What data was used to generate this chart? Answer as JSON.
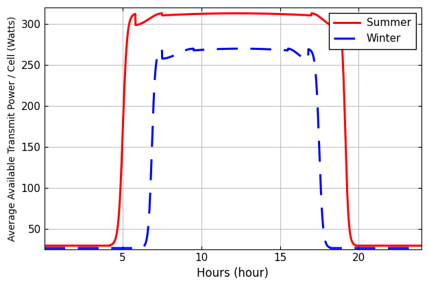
{
  "title": "",
  "xlabel": "Hours (hour)",
  "ylabel": "Average Available Transmit Power / Cell (Watts)",
  "xlim": [
    0,
    24
  ],
  "ylim": [
    25,
    320
  ],
  "yticks": [
    50,
    100,
    150,
    200,
    250,
    300
  ],
  "xticks": [
    5,
    10,
    15,
    20
  ],
  "summer_color": "#ff0000",
  "winter_color": "#0000ff",
  "summer_label": "Summer",
  "winter_label": "Winter",
  "background_color": "#ffffff",
  "grid_color": "#b0b0b0",
  "summer_baseline": 30,
  "summer_peak": 313,
  "summer_peak_hour": 12.0,
  "summer_rise_start": 4.2,
  "summer_rise_end": 5.8,
  "summer_flat_start": 7.5,
  "summer_flat_end": 17.0,
  "summer_fall_start": 18.5,
  "summer_fall_end": 19.8,
  "winter_baseline": 27,
  "winter_peak": 270,
  "winter_peak_hour": 12.5,
  "winter_rise_start": 6.2,
  "winter_rise_end": 7.5,
  "winter_flat_start": 9.5,
  "winter_flat_end": 15.5,
  "winter_fall_start": 16.8,
  "winter_fall_end": 18.2
}
